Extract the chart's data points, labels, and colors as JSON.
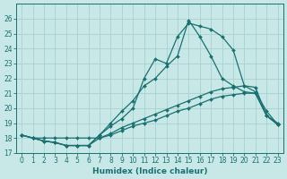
{
  "xlabel": "Humidex (Indice chaleur)",
  "bg_color": "#c8e8e8",
  "grid_color": "#a8d0d0",
  "line_color": "#1a7070",
  "xlim": [
    -0.5,
    23.5
  ],
  "ylim": [
    17,
    27
  ],
  "yticks": [
    17,
    18,
    19,
    20,
    21,
    22,
    23,
    24,
    25,
    26
  ],
  "xticks": [
    0,
    1,
    2,
    3,
    4,
    5,
    6,
    7,
    8,
    9,
    10,
    11,
    12,
    13,
    14,
    15,
    16,
    17,
    18,
    19,
    20,
    21,
    22,
    23
  ],
  "series1_y": [
    18.2,
    18.0,
    17.8,
    17.7,
    17.5,
    17.5,
    17.5,
    18.2,
    19.0,
    19.8,
    20.5,
    21.5,
    22.0,
    22.8,
    23.5,
    25.9,
    24.8,
    23.5,
    22.0,
    21.5,
    21.1,
    21.0,
    19.5,
    19.0
  ],
  "series2_y": [
    18.2,
    18.0,
    17.8,
    17.7,
    17.5,
    17.5,
    17.5,
    18.2,
    18.8,
    19.3,
    20.0,
    22.0,
    23.3,
    23.0,
    24.8,
    25.7,
    25.5,
    25.3,
    24.8,
    23.9,
    21.5,
    21.1,
    19.8,
    18.9
  ],
  "series3_y": [
    18.2,
    18.0,
    18.0,
    18.0,
    18.0,
    18.0,
    18.0,
    18.0,
    18.2,
    18.5,
    18.8,
    19.0,
    19.2,
    19.5,
    19.8,
    20.0,
    20.3,
    20.6,
    20.8,
    20.9,
    21.0,
    21.0,
    19.5,
    18.9
  ],
  "series4_y": [
    18.2,
    18.0,
    17.8,
    17.7,
    17.5,
    17.5,
    17.5,
    18.0,
    18.3,
    18.7,
    19.0,
    19.3,
    19.6,
    19.9,
    20.2,
    20.5,
    20.8,
    21.1,
    21.3,
    21.4,
    21.5,
    21.4,
    19.5,
    18.9
  ]
}
